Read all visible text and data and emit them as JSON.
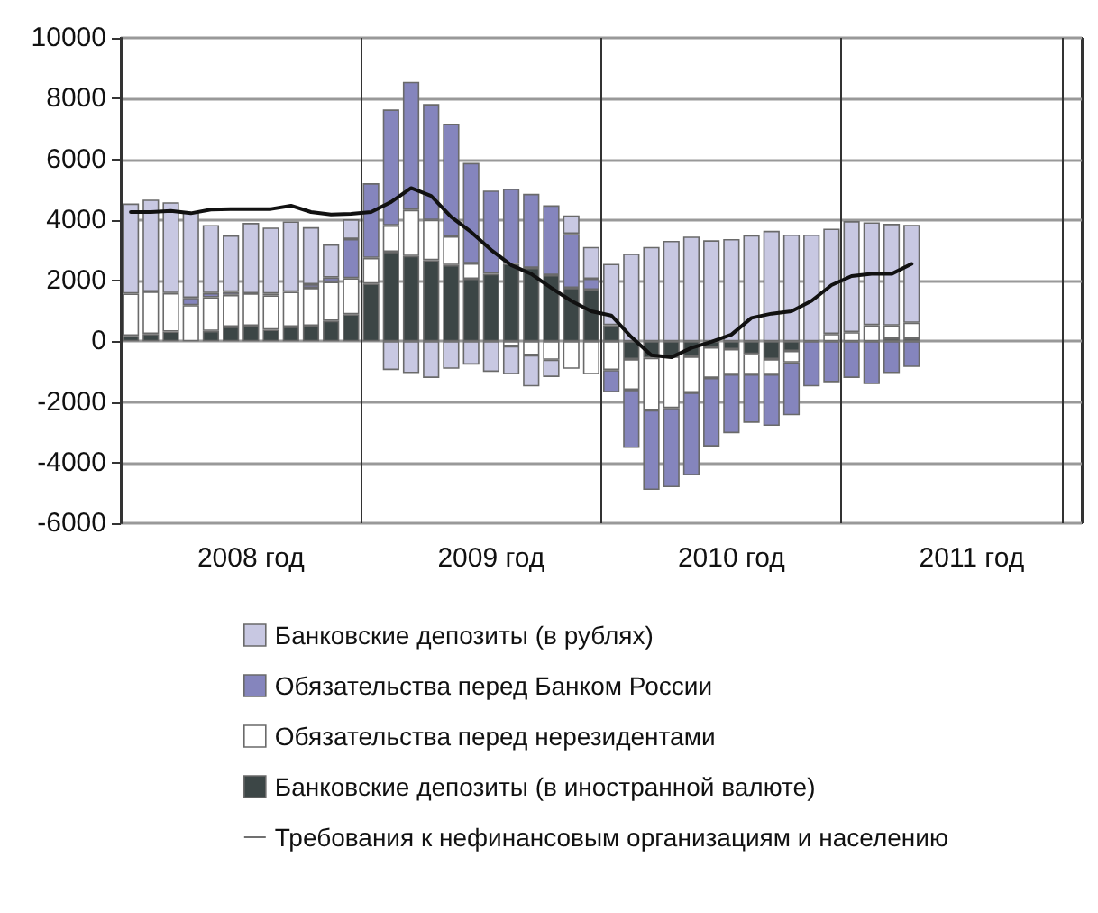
{
  "chart_data": {
    "type": "bar",
    "stacked": true,
    "grid": true,
    "legend": "bottom",
    "categories": [
      null,
      null,
      null,
      null,
      null,
      null,
      "2008 год",
      null,
      null,
      null,
      null,
      null,
      null,
      null,
      null,
      null,
      null,
      null,
      "2009 год",
      null,
      null,
      null,
      null,
      null,
      null,
      null,
      null,
      null,
      null,
      null,
      "2010 год",
      null,
      null,
      null,
      null,
      null,
      null,
      null,
      null,
      null,
      null,
      null,
      "2011 год",
      null,
      null,
      null,
      null,
      null
    ],
    "ylim": [
      -6000,
      10000
    ],
    "yticks": [
      -6000,
      -4000,
      -2000,
      0,
      2000,
      4000,
      6000,
      8000,
      10000
    ],
    "series": [
      {
        "name": "Банковские депозиты (в иностранной валюте)",
        "color": "#3c4646",
        "values": [
          180,
          240,
          320,
          null,
          340,
          480,
          510,
          380,
          480,
          510,
          670,
          890,
          1900,
          2950,
          2810,
          2670,
          2510,
          2060,
          2220,
          2550,
          2420,
          2180,
          1760,
          1700,
          530,
          -590,
          -550,
          -500,
          -500,
          -200,
          -260,
          -420,
          -590,
          -320,
          null,
          null,
          null,
          null,
          100,
          100,
          null,
          null,
          null,
          null,
          null,
          null,
          null,
          null
        ]
      },
      {
        "name": "Обязательства перед нерезидентами",
        "color": "#ffffff",
        "values": [
          1390,
          1400,
          1270,
          1190,
          1110,
          1050,
          1070,
          1130,
          1150,
          1250,
          1290,
          1190,
          850,
          870,
          1520,
          1330,
          950,
          510,
          null,
          -160,
          -460,
          -610,
          -910,
          -1090,
          -950,
          -1010,
          -1720,
          -1700,
          -1190,
          -1010,
          -830,
          -670,
          -500,
          -380,
          null,
          240,
          300,
          530,
          420,
          510,
          null,
          null,
          null,
          null,
          null,
          null,
          null,
          null
        ]
      },
      {
        "name": "Обязательства перед Банком России",
        "color": "#8585bd",
        "values": [
          null,
          null,
          null,
          240,
          140,
          100,
          null,
          60,
          null,
          120,
          140,
          1290,
          2460,
          3820,
          4220,
          3820,
          3700,
          3310,
          2750,
          2480,
          2440,
          2300,
          1780,
          360,
          -730,
          -1920,
          -2630,
          -2610,
          -2730,
          -2260,
          -1940,
          -1600,
          -1700,
          -1740,
          -1490,
          -1350,
          -1210,
          -1410,
          -1050,
          -850,
          null,
          null,
          null,
          null,
          null,
          null,
          null,
          null
        ]
      },
      {
        "name": "Банковские депозиты (в рублях)",
        "color": "#c8c8e2",
        "values": [
          2970,
          3030,
          2990,
          2830,
          2240,
          1860,
          2320,
          2180,
          2320,
          1880,
          1090,
          650,
          null,
          -950,
          -1050,
          -1210,
          -910,
          -770,
          -1010,
          -930,
          -1030,
          -570,
          610,
          1050,
          2020,
          2890,
          3110,
          3310,
          3450,
          3330,
          3370,
          3500,
          3640,
          3520,
          3520,
          3470,
          3660,
          3390,
          3350,
          3230,
          null,
          null,
          null,
          null,
          null,
          null,
          null,
          null
        ]
      },
      {
        "name": "Требования к нефинансовым организациям и населению",
        "type": "line",
        "color": "#111111",
        "values": [
          4260,
          4260,
          4300,
          4220,
          4340,
          4360,
          4360,
          4360,
          4470,
          4260,
          4180,
          4200,
          4260,
          4590,
          5050,
          4790,
          4100,
          3600,
          3010,
          2510,
          2220,
          1760,
          1330,
          990,
          850,
          140,
          -460,
          -530,
          -220,
          -20,
          220,
          770,
          910,
          990,
          1330,
          1850,
          2150,
          2220,
          2220,
          2550,
          null,
          null,
          null,
          null,
          null,
          null,
          null,
          null
        ]
      }
    ]
  }
}
